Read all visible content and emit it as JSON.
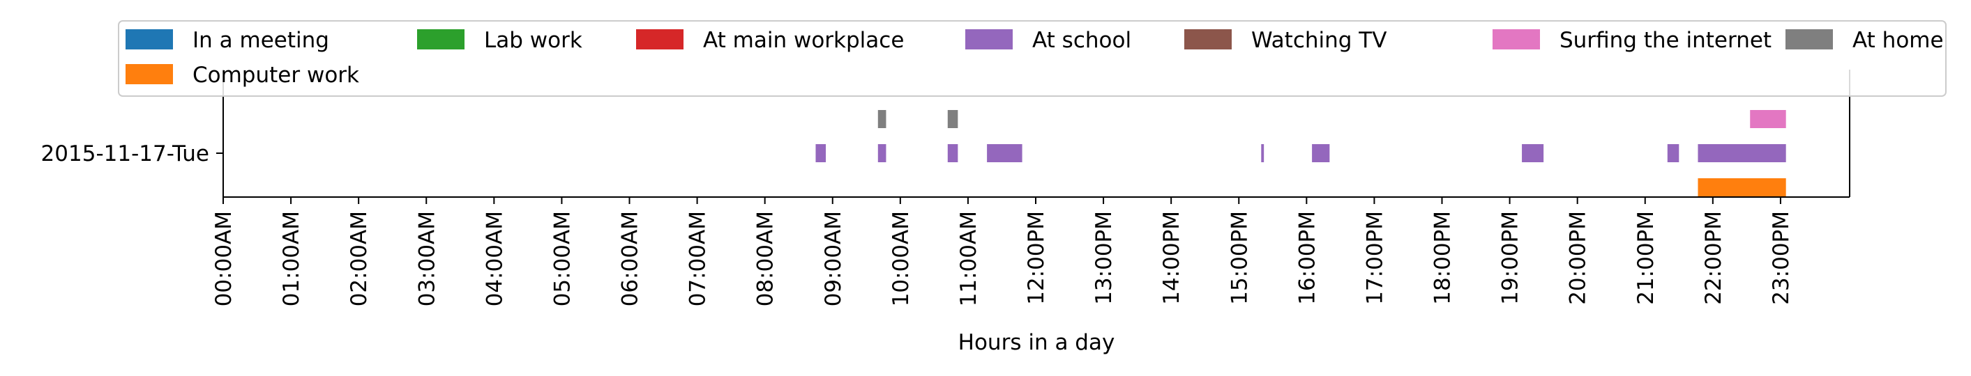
{
  "chart_data": {
    "type": "timeline",
    "title": "",
    "xlabel": "Hours in a day",
    "ylabel": "",
    "xlim": [
      0,
      24
    ],
    "x_ticks": [
      "00:00AM",
      "01:00AM",
      "02:00AM",
      "03:00AM",
      "04:00AM",
      "05:00AM",
      "06:00AM",
      "07:00AM",
      "08:00AM",
      "09:00AM",
      "10:00AM",
      "11:00AM",
      "12:00PM",
      "13:00PM",
      "14:00PM",
      "15:00PM",
      "16:00PM",
      "17:00PM",
      "18:00PM",
      "19:00PM",
      "20:00PM",
      "21:00PM",
      "22:00PM",
      "23:00PM"
    ],
    "y_categories": [
      "2015-11-17-Tue"
    ],
    "grid": false,
    "legend_position": "top",
    "legend": [
      {
        "name": "In a meeting",
        "color": "#1f77b4"
      },
      {
        "name": "Lab work",
        "color": "#2ca02c"
      },
      {
        "name": "At main workplace",
        "color": "#d62728"
      },
      {
        "name": "At school",
        "color": "#9467bd"
      },
      {
        "name": "Watching TV",
        "color": "#8c564b"
      },
      {
        "name": "Surfing the internet",
        "color": "#e377c2"
      },
      {
        "name": "At home",
        "color": "#7f7f7f"
      },
      {
        "name": "Computer work",
        "color": "#ff7f0e"
      }
    ],
    "series": [
      {
        "name": "At home",
        "lane": 1,
        "day": "2015-11-17-Tue",
        "intervals": [
          [
            9.67,
            9.79
          ],
          [
            10.7,
            10.85
          ]
        ]
      },
      {
        "name": "Surfing the internet",
        "lane": 1,
        "day": "2015-11-17-Tue",
        "intervals": [
          [
            22.55,
            23.08
          ]
        ]
      },
      {
        "name": "At school",
        "lane": 0,
        "day": "2015-11-17-Tue",
        "intervals": [
          [
            8.75,
            8.9
          ],
          [
            9.67,
            9.79
          ],
          [
            10.7,
            10.85
          ],
          [
            11.28,
            11.8
          ],
          [
            15.33,
            15.37
          ],
          [
            16.08,
            16.34
          ],
          [
            19.18,
            19.5
          ],
          [
            21.33,
            21.5
          ],
          [
            21.78,
            23.08
          ]
        ]
      },
      {
        "name": "Computer work",
        "lane": -1,
        "day": "2015-11-17-Tue",
        "intervals": [
          [
            21.78,
            23.08
          ]
        ]
      }
    ]
  }
}
